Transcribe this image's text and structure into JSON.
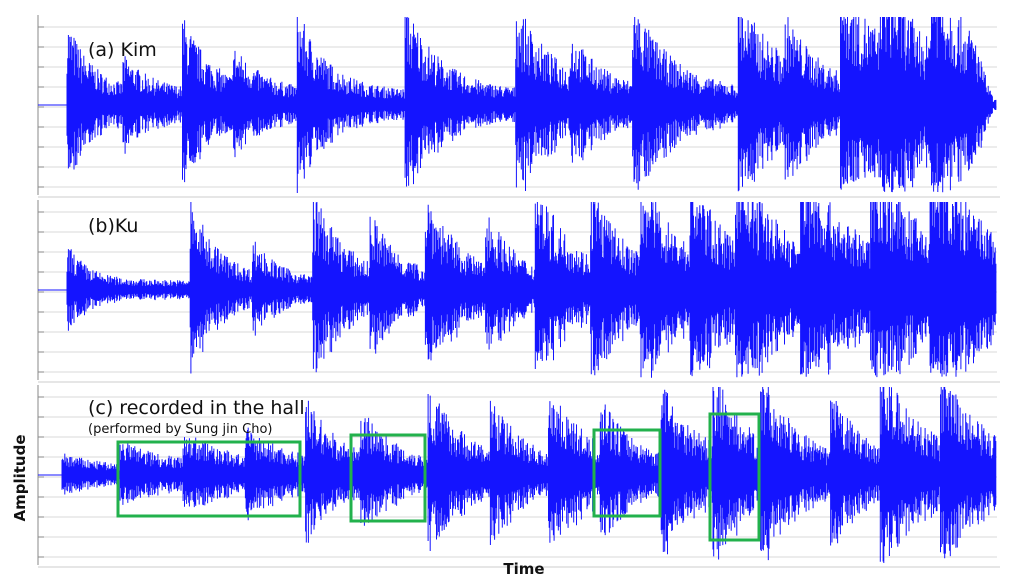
{
  "panels": [
    {
      "label": "(a)  Kim"
    },
    {
      "label": "(b)Ku"
    },
    {
      "label": "(c) recorded in the hall",
      "note": "(performed by Sung jin Cho)"
    }
  ],
  "y_axis_label": "Amplitude",
  "x_axis_label": "Time"
}
